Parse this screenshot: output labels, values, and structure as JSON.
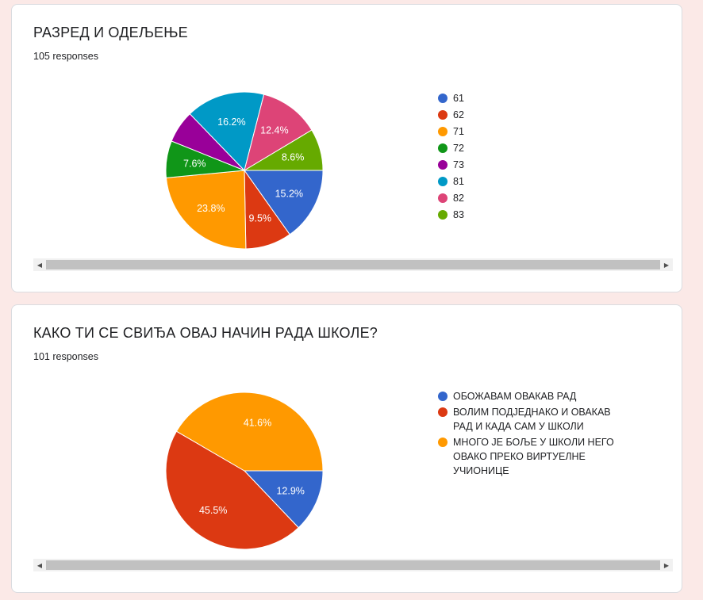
{
  "cards": [
    {
      "title": "РАЗРЕД И ОДЕЉЕЊЕ",
      "responses": "105 responses"
    },
    {
      "title": "КАКО ТИ СЕ СВИЂА ОВАЈ НАЧИН РАДА ШКОЛЕ?",
      "responses": "101 responses"
    }
  ],
  "chart_data": [
    {
      "type": "pie",
      "title": "РАЗРЕД И ОДЕЉЕЊЕ",
      "legend_position": "right",
      "categories": [
        "61",
        "62",
        "71",
        "72",
        "73",
        "81",
        "82",
        "83"
      ],
      "values": [
        15.2,
        9.5,
        23.8,
        7.6,
        6.7,
        16.2,
        12.4,
        8.6
      ],
      "labels": [
        "15.2%",
        "9.5%",
        "23.8%",
        "7.6%",
        "",
        "16.2%",
        "12.4%",
        "8.6%"
      ],
      "colors": [
        "#3366cc",
        "#dc3912",
        "#ff9900",
        "#109618",
        "#990099",
        "#0099c6",
        "#dd4477",
        "#66aa00"
      ]
    },
    {
      "type": "pie",
      "title": "КАКО ТИ СЕ СВИЂА ОВАЈ НАЧИН РАДА ШКОЛЕ?",
      "legend_position": "right",
      "categories": [
        "ОБОЖАВАМ ОВАКАВ РАД",
        "ВОЛИМ ПОДЈЕДНАКО И ОВАКАВ РАД И КАДА САМ У ШКОЛИ",
        "МНОГО ЈЕ БОЉЕ У ШКОЛИ НЕГО ОВАКО ПРЕКО ВИРТУЕЛНЕ УЧИОНИЦЕ"
      ],
      "values": [
        12.9,
        45.5,
        41.6
      ],
      "labels": [
        "12.9%",
        "45.5%",
        "41.6%"
      ],
      "colors": [
        "#3366cc",
        "#dc3912",
        "#ff9900"
      ]
    }
  ],
  "scrollbar": {
    "left_arrow": "◀",
    "right_arrow": "▶"
  }
}
